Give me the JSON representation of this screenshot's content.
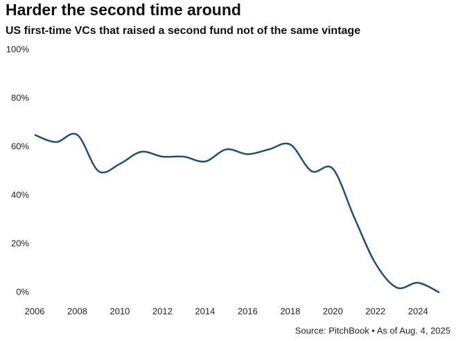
{
  "chart_data": {
    "type": "line",
    "title": "Harder the second time around",
    "subtitle": "US first-time VCs that raised a second fund not of the same vintage",
    "source": "Source: PitchBook • As of Aug. 4, 2025",
    "x": [
      2006,
      2007,
      2008,
      2009,
      2010,
      2011,
      2012,
      2013,
      2014,
      2015,
      2016,
      2017,
      2018,
      2019,
      2020,
      2021,
      2022,
      2023,
      2024,
      2025
    ],
    "values": [
      65,
      62,
      65,
      50,
      53,
      58,
      56,
      56,
      54,
      59,
      57,
      59,
      61,
      50,
      51,
      31,
      12,
      2,
      4,
      0
    ],
    "color": "#1f4e79",
    "xlim": [
      2006,
      2025
    ],
    "xticks": [
      2006,
      2008,
      2010,
      2012,
      2014,
      2016,
      2018,
      2020,
      2022,
      2024
    ],
    "ylim": [
      0,
      100
    ],
    "yticks": [
      {
        "value": 0,
        "label": "0%"
      },
      {
        "value": 20,
        "label": "20%"
      },
      {
        "value": 40,
        "label": "40%"
      },
      {
        "value": 60,
        "label": "60%"
      },
      {
        "value": 80,
        "label": "80%"
      },
      {
        "value": 100,
        "label": "100%"
      }
    ],
    "grid": false
  }
}
